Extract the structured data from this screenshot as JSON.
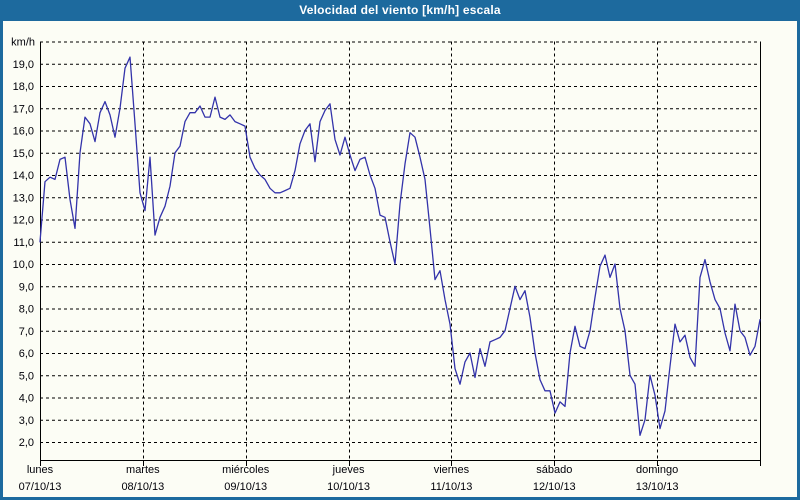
{
  "window": {
    "title": "Velocidad del viento [km/h] escala",
    "titlebar_bg": "#1d6a9e",
    "title_color": "#ffffff",
    "chart_bg": "#fcfdf5"
  },
  "chart_data": {
    "type": "line",
    "title": "Velocidad del viento [km/h] escala",
    "unit_label": "km/h",
    "ylabel": "km/h",
    "y_min": 2.0,
    "y_max": 20.0,
    "y_tick_step": 1.0,
    "ylim": [
      2.0,
      20.0
    ],
    "grid": "dashed",
    "legend": "none",
    "line_color": "#3333aa",
    "grid_color": "#000000",
    "y_tick_labels": [
      "19,0",
      "18,0",
      "17,0",
      "16,0",
      "15,0",
      "14,0",
      "13,0",
      "12,0",
      "11,0",
      "10,0",
      "9,0",
      "8,0",
      "7,0",
      "6,0",
      "5,0",
      "4,0",
      "3,0",
      "2,0"
    ],
    "x_days": [
      {
        "name": "lunes",
        "date": "07/10/13"
      },
      {
        "name": "martes",
        "date": "08/10/13"
      },
      {
        "name": "miércoles",
        "date": "09/10/13"
      },
      {
        "name": "jueves",
        "date": "10/10/13"
      },
      {
        "name": "viernes",
        "date": "11/10/13"
      },
      {
        "name": "sábado",
        "date": "12/10/13"
      },
      {
        "name": "domingo",
        "date": "13/10/13"
      }
    ],
    "series": [
      {
        "name": "Velocidad del viento",
        "units": "km/h",
        "sampling": "uniform over 7 days, 145 points",
        "values": [
          11.0,
          13.7,
          13.9,
          13.8,
          14.7,
          14.8,
          12.9,
          11.6,
          15.0,
          16.6,
          16.3,
          15.5,
          16.8,
          17.3,
          16.7,
          15.7,
          17.0,
          18.8,
          19.3,
          16.3,
          13.2,
          12.4,
          14.8,
          11.3,
          12.1,
          12.6,
          13.5,
          15.0,
          15.3,
          16.4,
          16.8,
          16.8,
          17.1,
          16.6,
          16.6,
          17.5,
          16.6,
          16.5,
          16.7,
          16.4,
          16.3,
          16.2,
          14.8,
          14.3,
          14.0,
          13.8,
          13.4,
          13.2,
          13.2,
          13.3,
          13.4,
          14.2,
          15.4,
          16.0,
          16.3,
          14.6,
          16.4,
          16.9,
          17.2,
          15.6,
          14.9,
          15.7,
          14.9,
          14.2,
          14.7,
          14.8,
          14.0,
          13.4,
          12.2,
          12.1,
          11.0,
          10.0,
          12.7,
          14.5,
          15.9,
          15.7,
          14.8,
          13.8,
          11.6,
          9.3,
          9.7,
          8.4,
          7.3,
          5.3,
          4.6,
          5.6,
          6.0,
          4.9,
          6.2,
          5.4,
          6.5,
          6.6,
          6.7,
          7.0,
          8.0,
          9.0,
          8.4,
          8.8,
          7.6,
          6.0,
          4.8,
          4.3,
          4.3,
          3.3,
          3.8,
          3.6,
          6.0,
          7.2,
          6.3,
          6.2,
          7.0,
          8.5,
          9.9,
          10.4,
          9.4,
          10.0,
          8.0,
          7.0,
          5.0,
          4.6,
          2.3,
          3.0,
          5.0,
          4.1,
          2.6,
          3.4,
          5.4,
          7.3,
          6.5,
          6.8,
          5.8,
          5.4,
          9.4,
          10.2,
          9.2,
          8.4,
          8.0,
          6.9,
          6.1,
          8.2,
          7.0,
          6.7,
          5.9,
          6.3,
          7.5
        ]
      }
    ]
  }
}
